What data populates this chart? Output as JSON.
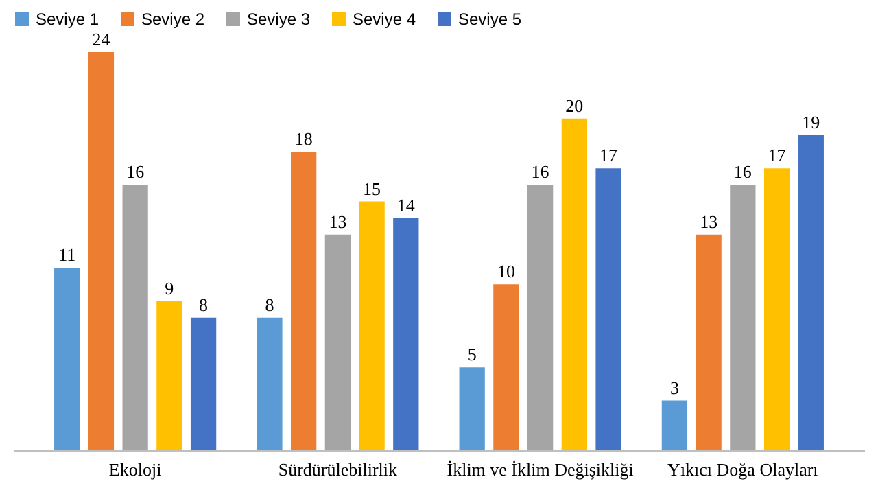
{
  "chart_data": {
    "type": "bar",
    "categories": [
      "Ekoloji",
      "Sürdürülebilirlik",
      "İklim ve İklim Değişikliği",
      "Yıkıcı Doğa Olayları"
    ],
    "series": [
      {
        "name": "Seviye 1",
        "color": "#5b9bd5",
        "values": [
          11,
          8,
          5,
          3
        ]
      },
      {
        "name": "Seviye 2",
        "color": "#ed7d31",
        "values": [
          24,
          18,
          10,
          13
        ]
      },
      {
        "name": "Seviye 3",
        "color": "#a5a5a5",
        "values": [
          16,
          13,
          16,
          16
        ]
      },
      {
        "name": "Seviye 4",
        "color": "#ffc000",
        "values": [
          9,
          15,
          20,
          17
        ]
      },
      {
        "name": "Seviye 5",
        "color": "#4472c4",
        "values": [
          8,
          14,
          17,
          19
        ]
      }
    ],
    "data_labels": true,
    "legend": "top",
    "grid": false
  }
}
